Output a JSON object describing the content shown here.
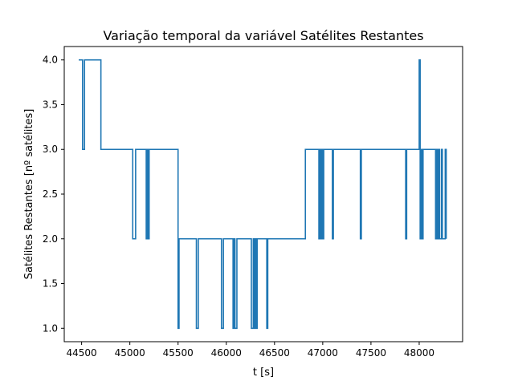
{
  "chart_data": {
    "type": "line",
    "title": "Variação temporal da variável Satélites Restantes",
    "xlabel": "t [s]",
    "ylabel": "Satélites Restantes [nº satélites]",
    "xlim": [
      44320,
      48450
    ],
    "ylim": [
      0.85,
      4.15
    ],
    "xticks": [
      44500,
      45000,
      45500,
      46000,
      46500,
      47000,
      47500,
      48000
    ],
    "yticks": [
      1.0,
      1.5,
      2.0,
      2.5,
      3.0,
      3.5,
      4.0
    ],
    "xtick_labels": [
      "44500",
      "45000",
      "45500",
      "46000",
      "46500",
      "47000",
      "47500",
      "48000"
    ],
    "ytick_labels": [
      "1.0",
      "1.5",
      "2.0",
      "2.5",
      "3.0",
      "3.5",
      "4.0"
    ],
    "grid": false,
    "step": "post",
    "color": "#1f77b4",
    "series": [
      {
        "x": [
          44470,
          44510,
          44530,
          44700,
          45030,
          45060,
          45170,
          45180,
          45190,
          45200,
          45210,
          45500,
          45510,
          45520,
          45690,
          45710,
          45950,
          45970,
          46070,
          46080,
          46090,
          46110,
          46130,
          46260,
          46280,
          46290,
          46300,
          46310,
          46320,
          46330,
          46420,
          46430,
          46820,
          46960,
          46970,
          46980,
          46990,
          47000,
          47010,
          47100,
          47110,
          47390,
          47400,
          47860,
          47870,
          48000,
          48010,
          48020,
          48030,
          48040,
          48170,
          48180,
          48190,
          48200,
          48210,
          48230,
          48240,
          48270,
          48280
        ],
        "y": [
          4,
          3,
          4,
          3,
          2,
          3,
          2,
          3,
          2,
          3,
          3,
          1,
          2,
          2,
          1,
          2,
          1,
          2,
          1,
          2,
          1,
          2,
          2,
          1,
          2,
          1,
          2,
          1,
          2,
          2,
          1,
          2,
          3,
          2,
          3,
          2,
          3,
          2,
          3,
          2,
          3,
          2,
          3,
          2,
          3,
          4,
          2,
          3,
          2,
          3,
          2,
          3,
          2,
          3,
          2,
          3,
          2,
          3,
          2
        ]
      }
    ]
  }
}
